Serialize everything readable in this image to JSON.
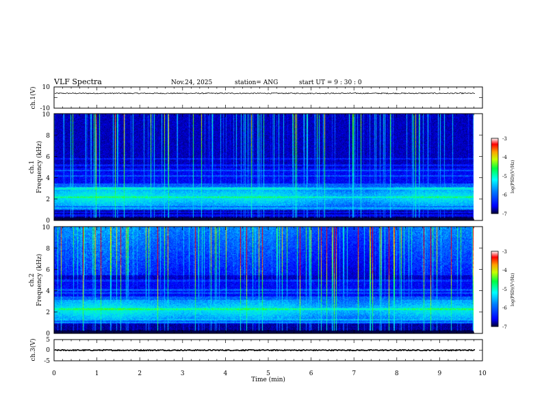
{
  "header": {
    "title": "VLF Spectra",
    "date": "Nov.24, 2025",
    "station": "station= ANG",
    "start_ut": "start  UT =   9  : 30 : 0"
  },
  "colors": {
    "spectrogram": [
      "#000033",
      "#00007a",
      "#0000ff",
      "#0070ff",
      "#00c8ff",
      "#00ffc0",
      "#30ff30",
      "#c8ff00",
      "#ffd000",
      "#ff5000",
      "#ff0000",
      "#ffffff"
    ],
    "trace": "#000000"
  },
  "chart_data": [
    {
      "type": "line",
      "name": "ch1-waveform",
      "ylabel": "ch.1(V)",
      "ylim": [
        -10,
        10
      ],
      "yticks": [
        "10",
        "-10"
      ],
      "baseline_value": 4,
      "noise_amplitude": 0.5
    },
    {
      "type": "heatmap",
      "name": "ch1-spectrogram",
      "ylabel_line1": "ch.1",
      "ylabel_line2": "Frequency (kHz)",
      "ylim_khz": [
        0,
        10
      ],
      "yticks": [
        "0",
        "2",
        "4",
        "6",
        "8",
        "10"
      ],
      "colorbar_label": "log(PSD)(V²/Hz)",
      "colorbar_range": [
        -7,
        -3
      ],
      "colorbar_ticks": [
        "-3",
        "-4",
        "-5",
        "-6",
        "-7"
      ],
      "bands_khz": [
        0.5,
        0.8,
        1.2,
        2.2,
        3.0,
        4.2,
        4.7,
        5.2,
        5.8
      ],
      "data_end_min": 9.83
    },
    {
      "type": "heatmap",
      "name": "ch2-spectrogram",
      "ylabel_line1": "ch.2",
      "ylabel_line2": "Frequency (kHz)",
      "ylim_khz": [
        0,
        10
      ],
      "yticks": [
        "0",
        "2",
        "4",
        "6",
        "8",
        "10"
      ],
      "colorbar_label": "log(PSD)(V²/Hz)",
      "colorbar_range": [
        -7,
        -3
      ],
      "colorbar_ticks": [
        "-3",
        "-4",
        "-5",
        "-6",
        "-7"
      ],
      "bands_khz": [
        1.0,
        1.3,
        2.3,
        3.8,
        4.1,
        5.0
      ],
      "data_end_min": 9.83
    },
    {
      "type": "line",
      "name": "ch3-waveform",
      "ylabel": "ch.3(V)",
      "ylim": [
        -5,
        5
      ],
      "yticks": [
        "5",
        "0",
        "-5"
      ],
      "baseline_value": 0,
      "noise_amplitude": 0.25
    }
  ],
  "xaxis": {
    "label": "Time (min)",
    "range": [
      0,
      10
    ],
    "ticks": [
      "0",
      "1",
      "2",
      "3",
      "4",
      "5",
      "6",
      "7",
      "8",
      "9",
      "10"
    ]
  }
}
